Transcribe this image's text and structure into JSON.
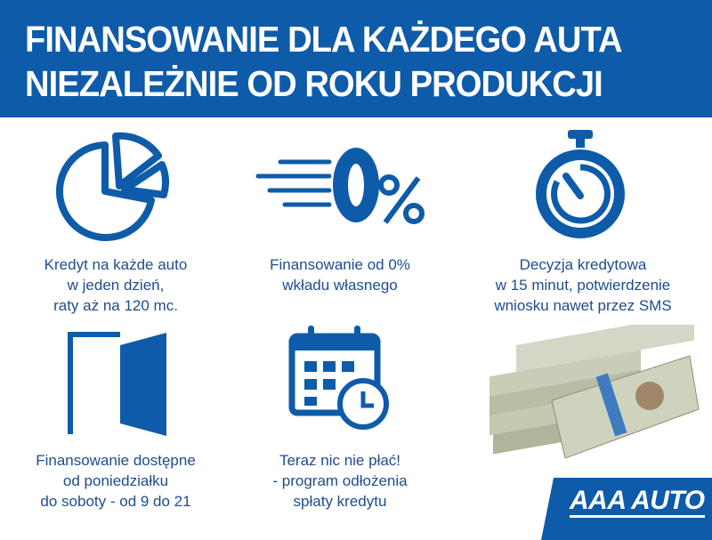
{
  "header": {
    "line1": "FINANSOWANIE DLA KAŻDEGO AUTA",
    "line2": "NIEZALEŻNIE OD ROKU PRODUKCJI"
  },
  "features": [
    {
      "icon": "pie-chart-icon",
      "lines": [
        "Kredyt na każde auto",
        "w jeden dzień,",
        "raty aż na 120 mc."
      ]
    },
    {
      "icon": "zero-percent-icon",
      "lines": [
        "Finansowanie od 0%",
        "wkładu własnego"
      ]
    },
    {
      "icon": "stopwatch-icon",
      "lines": [
        "Decyzja kredytowa",
        "w 15 minut, potwierdzenie",
        "wniosku nawet przez SMS"
      ]
    },
    {
      "icon": "door-icon",
      "lines": [
        "Finansowanie dostępne",
        "od poniedziałku",
        "do soboty - od 9 do 21"
      ]
    },
    {
      "icon": "calendar-clock-icon",
      "lines": [
        "Teraz nic nie płać!",
        "- program odłożenia",
        "spłaty kredytu"
      ]
    },
    {
      "icon": "money-stack-image",
      "lines": []
    }
  ],
  "logo": {
    "text": "AAA AUTO"
  },
  "colors": {
    "brand_blue": "#0e5ba9",
    "text_blue": "#1f4c8f"
  }
}
